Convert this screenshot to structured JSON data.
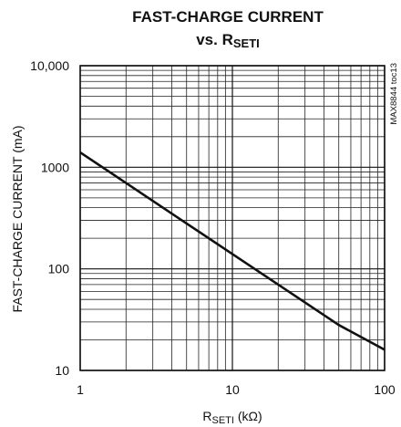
{
  "chart_data": {
    "type": "line",
    "title_line1": "FAST-CHARGE CURRENT",
    "title_line2_prefix": "vs. R",
    "title_line2_sub": "SETI",
    "xlabel_prefix": "R",
    "xlabel_sub": "SETI",
    "xlabel_suffix": " (kΩ)",
    "ylabel": "FAST-CHARGE CURRENT (mA)",
    "x_scale": "log",
    "y_scale": "log",
    "xlim": [
      1,
      100
    ],
    "ylim": [
      10,
      10000
    ],
    "x_ticks": [
      1,
      10,
      100
    ],
    "x_tick_labels": [
      "1",
      "10",
      "100"
    ],
    "y_ticks": [
      10,
      100,
      1000,
      10000
    ],
    "y_tick_labels": [
      "10",
      "100",
      "1000",
      "10,000"
    ],
    "grid": true,
    "annotation": "MAX8844 toc13",
    "series": [
      {
        "x": [
          1,
          2,
          5,
          10,
          20,
          50,
          100
        ],
        "y": [
          1400,
          700,
          280,
          140,
          70,
          28,
          16
        ]
      }
    ]
  }
}
